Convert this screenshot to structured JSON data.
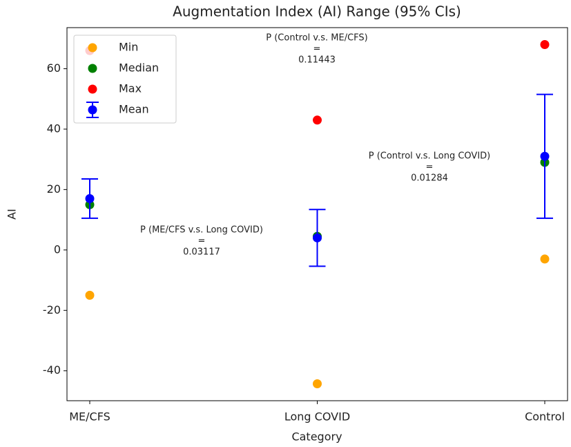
{
  "chart_data": {
    "type": "errorbar-scatter",
    "title": "Augmentation Index (AI) Range (95% CIs)",
    "x_label": "Category",
    "y_label": "AI",
    "categories": [
      "ME/CFS",
      "Long COVID",
      "Control"
    ],
    "series": [
      {
        "name": "Min",
        "color": "#ffa500",
        "values": [
          -15,
          -44.3,
          -3
        ]
      },
      {
        "name": "Median",
        "color": "#008000",
        "values": [
          15,
          4.5,
          29
        ]
      },
      {
        "name": "Max",
        "color": "#ff0000",
        "values": [
          66,
          43,
          68
        ]
      },
      {
        "name": "Mean",
        "color": "#0000ff",
        "values": [
          17,
          4,
          31
        ],
        "errors": [
          6.5,
          9.4,
          20.5
        ]
      }
    ],
    "ylim": [
      -49.9,
      73.6
    ],
    "yticks": [
      -40,
      -20,
      0,
      20,
      40,
      60
    ],
    "legend": "upper left",
    "annotations": [
      [
        "P (Control v.s. ME/CFS)",
        "=",
        "0.11443"
      ],
      [
        "P (Control v.s. Long COVID)",
        "=",
        "0.01284"
      ],
      [
        "P (ME/CFS v.s. Long COVID)",
        "=",
        "0.03117"
      ]
    ]
  }
}
